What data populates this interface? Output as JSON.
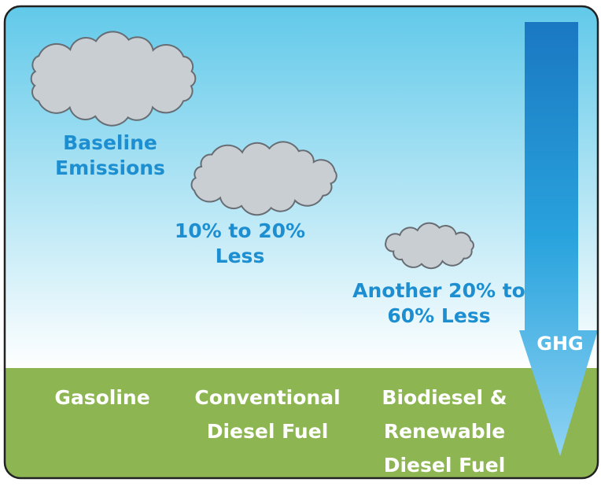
{
  "emissions": [
    {
      "lines": [
        "Baseline",
        "Emissions"
      ]
    },
    {
      "lines": [
        "10% to 20%",
        "Less"
      ]
    },
    {
      "lines": [
        "Another 20% to",
        "60% Less"
      ]
    }
  ],
  "fuels": [
    {
      "lines": [
        "Gasoline"
      ]
    },
    {
      "lines": [
        "Conventional",
        "Diesel Fuel"
      ]
    },
    {
      "lines": [
        "Biodiesel &",
        "Renewable",
        "Diesel Fuel"
      ]
    }
  ],
  "arrow_label": "GHG"
}
